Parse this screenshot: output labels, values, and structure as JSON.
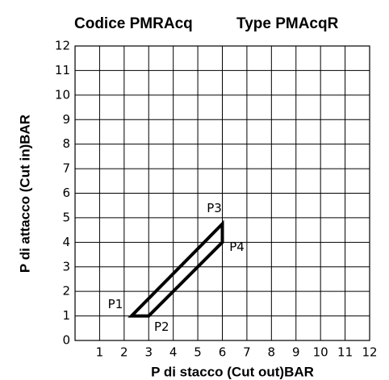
{
  "chart_data": {
    "type": "polygon",
    "title": "Codice PMRAcq",
    "subtitle": "Type PMAcqR",
    "xlabel": "P di stacco (Cut out)BAR",
    "ylabel": "P di attacco (Cut in)BAR",
    "xlim": [
      0,
      12
    ],
    "ylim": [
      0,
      12
    ],
    "xticks": [
      1,
      2,
      3,
      4,
      5,
      6,
      7,
      8,
      9,
      10,
      11,
      12
    ],
    "yticks": [
      0,
      1,
      2,
      3,
      4,
      5,
      6,
      7,
      8,
      9,
      10,
      11,
      12
    ],
    "grid": true,
    "series": [
      {
        "color": "#000000",
        "x": [
          2.3,
          3,
          6,
          6
        ],
        "values": [
          1,
          1,
          4,
          4.75
        ],
        "labels": [
          "P1",
          "P2",
          "P4",
          "P3"
        ]
      }
    ]
  }
}
